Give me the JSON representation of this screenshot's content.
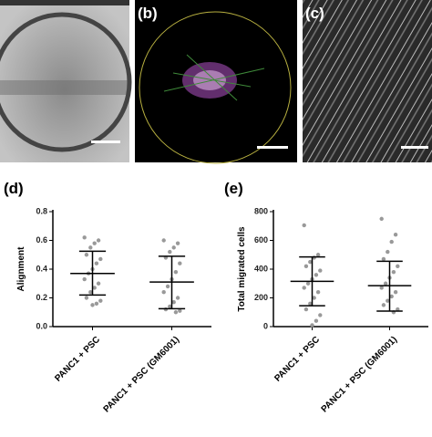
{
  "panels": {
    "b": "(b)",
    "c": "(c)"
  },
  "chart_data": [
    {
      "type": "dot",
      "panel": "(d)",
      "ylabel": "Alignment",
      "categories": [
        "PANC1 + PSC",
        "PANC1 + PSC (GM6001)"
      ],
      "values": [
        [
          0.62,
          0.6,
          0.58,
          0.55,
          0.5,
          0.47,
          0.44,
          0.4,
          0.37,
          0.33,
          0.3,
          0.27,
          0.24,
          0.2,
          0.18,
          0.16,
          0.15
        ],
        [
          0.6,
          0.58,
          0.55,
          0.52,
          0.48,
          0.44,
          0.38,
          0.33,
          0.28,
          0.24,
          0.2,
          0.17,
          0.14,
          0.12,
          0.11,
          0.1
        ]
      ],
      "mean": [
        0.37,
        0.31
      ],
      "error_low": [
        0.22,
        0.125
      ],
      "error_high": [
        0.525,
        0.49
      ],
      "color": "#999999",
      "ylim": [
        0,
        0.8
      ],
      "yticks": [
        {
          "value": 0,
          "label": "0.0"
        },
        0.2,
        0.4,
        0.6,
        0.8
      ]
    },
    {
      "type": "dot",
      "panel": "(e)",
      "ylabel": "Total migrated cells",
      "categories": [
        "PANC1 + PSC",
        "PANC1 + PSC (GM6001)"
      ],
      "values": [
        [
          705,
          500,
          480,
          450,
          420,
          390,
          360,
          330,
          300,
          270,
          240,
          200,
          160,
          120,
          80,
          40,
          10
        ],
        [
          750,
          640,
          590,
          520,
          470,
          420,
          380,
          340,
          300,
          270,
          240,
          210,
          180,
          150,
          120,
          100
        ]
      ],
      "mean": [
        315,
        285
      ],
      "error_low": [
        145,
        108
      ],
      "error_high": [
        485,
        455
      ],
      "color": "#999999",
      "ylim": [
        0,
        800
      ],
      "yticks": [
        0,
        200,
        400,
        600,
        800
      ]
    }
  ]
}
